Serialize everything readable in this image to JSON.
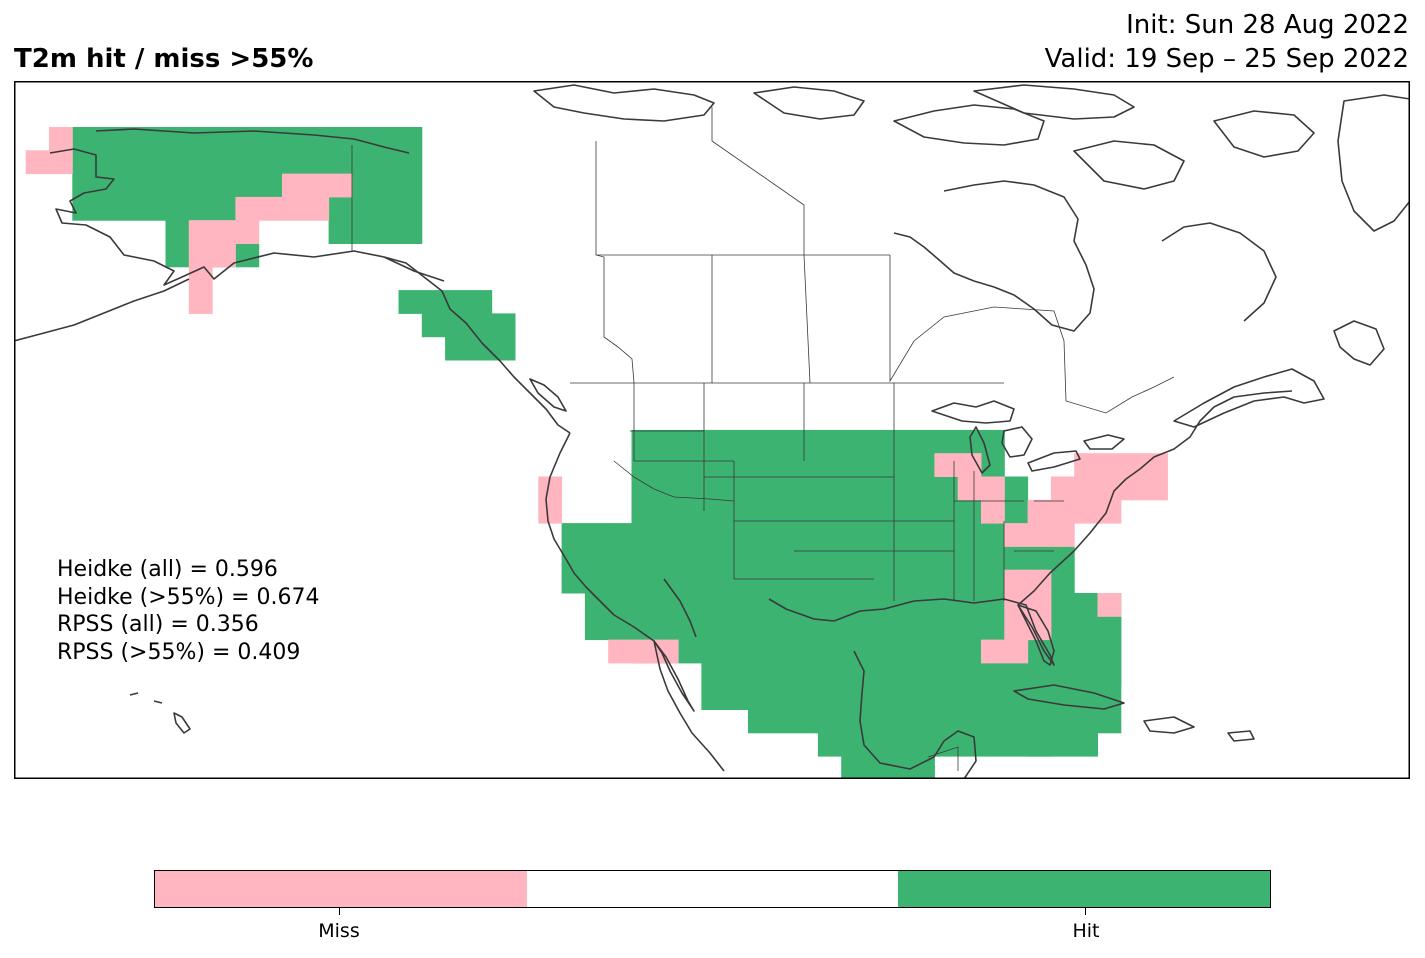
{
  "header": {
    "title": "T2m hit / miss  >55%",
    "init": "Init: Sun 28 Aug 2022",
    "valid": "Valid: 19 Sep – 25 Sep 2022"
  },
  "scores": [
    "Heidke (all) = 0.596",
    "Heidke (>55%) = 0.674",
    "RPSS (all) = 0.356",
    "RPSS (>55%) = 0.409"
  ],
  "colors": {
    "miss": "#FFB6C1",
    "neutral": "#FFFFFF",
    "hit": "#3CB371",
    "coast": "#3a3a3a"
  },
  "legend": {
    "miss_label": "Miss",
    "hit_label": "Hit"
  }
}
